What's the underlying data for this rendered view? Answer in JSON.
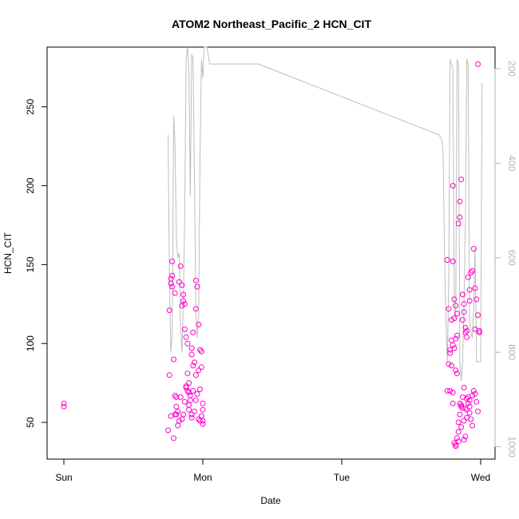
{
  "chart_data": {
    "type": "scatter",
    "title": "ATOM2 Northeast_Pacific_2 HCN_CIT",
    "xlabel": "Date",
    "ylabel": "HCN_CIT",
    "x_tick_labels": [
      "Sun",
      "Mon",
      "Tue",
      "Wed"
    ],
    "y_ticks": [
      50,
      100,
      150,
      200,
      250
    ],
    "y_tick_labels": [
      "50",
      "100",
      "150",
      "200",
      "250"
    ],
    "ylim": [
      26,
      289
    ],
    "y2_ticks": [
      200,
      400,
      600,
      800,
      1000
    ],
    "y2_tick_labels": [
      "200",
      "400",
      "600",
      "800",
      "1000"
    ],
    "y2_reversed": true,
    "xlim_days": [
      -0.07,
      3.12
    ],
    "grid": false,
    "colors": {
      "points": "#ff00cc",
      "line": "#bdbdbd",
      "right_axis": "#b3b3b3"
    },
    "series": [
      {
        "x": [
          0.0,
          0.0,
          0.75,
          0.76,
          0.77,
          0.77,
          0.78,
          0.78,
          0.79,
          0.8,
          0.81,
          0.81,
          0.82,
          0.83,
          0.84,
          0.85,
          0.86,
          0.86,
          0.87,
          0.88,
          0.89,
          0.89,
          0.9,
          0.9,
          0.91,
          0.92,
          0.92,
          0.93,
          0.94,
          0.95,
          0.95,
          0.96,
          0.97,
          0.98,
          0.99,
          0.99,
          1.0,
          1.0,
          0.76,
          0.77,
          0.79,
          0.8,
          0.81,
          0.82,
          0.84,
          0.85,
          0.86,
          0.87,
          0.88,
          0.89,
          0.9,
          0.91,
          0.92,
          0.93,
          0.94,
          0.95,
          0.96,
          0.97,
          0.98,
          0.99,
          1.0,
          0.78,
          0.8,
          0.83,
          0.85,
          0.87,
          0.88,
          0.9,
          0.92,
          0.93,
          0.95,
          0.97,
          0.98,
          1.0,
          2.76,
          2.77,
          2.78,
          2.79,
          2.8,
          2.8,
          2.81,
          2.81,
          2.82,
          2.82,
          2.83,
          2.83,
          2.84,
          2.85,
          2.85,
          2.86,
          2.87,
          2.87,
          2.88,
          2.88,
          2.89,
          2.89,
          2.9,
          2.9,
          2.91,
          2.92,
          2.92,
          2.93,
          2.94,
          2.95,
          2.96,
          2.97,
          2.98,
          2.99,
          2.76,
          2.77,
          2.78,
          2.79,
          2.8,
          2.81,
          2.82,
          2.83,
          2.84,
          2.85,
          2.86,
          2.87,
          2.88,
          2.89,
          2.9,
          2.91,
          2.92,
          2.93,
          2.94,
          2.95,
          2.96,
          2.97,
          2.98,
          2.99,
          2.79,
          2.8,
          2.81,
          2.82,
          2.83,
          2.84,
          2.85,
          2.86,
          2.87,
          2.88,
          2.89,
          2.9,
          2.91,
          2.92,
          2.78,
          2.8,
          2.82,
          2.84,
          2.86,
          2.88,
          2.9,
          2.92,
          2.94,
          2.96,
          2.98
        ],
        "y": [
          62,
          60,
          45,
          121,
          141,
          138,
          143,
          136,
          90,
          67,
          66,
          55,
          48,
          51,
          149,
          137,
          131,
          127,
          125,
          104,
          100,
          81,
          69,
          75,
          64,
          97,
          93,
          107,
          88,
          122,
          140,
          136,
          112,
          96,
          85,
          95,
          62,
          58,
          80,
          54,
          40,
          55,
          60,
          57,
          66,
          52,
          55,
          63,
          72,
          70,
          58,
          67,
          53,
          70,
          57,
          64,
          68,
          52,
          51,
          54,
          49,
          152,
          132,
          139,
          124,
          109,
          73,
          61,
          55,
          86,
          80,
          83,
          71,
          51,
          153,
          122,
          94,
          115,
          200,
          152,
          128,
          116,
          124,
          103,
          105,
          119,
          176,
          190,
          180,
          204,
          131,
          115,
          125,
          120,
          107,
          110,
          104,
          108,
          142,
          127,
          134,
          145,
          146,
          160,
          135,
          128,
          118,
          107,
          70,
          87,
          96,
          86,
          62,
          37,
          35,
          40,
          50,
          55,
          60,
          66,
          72,
          59,
          65,
          62,
          56,
          52,
          48,
          70,
          68,
          63,
          57,
          108,
          102,
          99,
          97,
          83,
          81,
          44,
          62,
          47,
          59,
          39,
          41,
          53,
          66,
          64,
          70,
          69,
          36,
          38,
          61,
          51,
          58,
          60,
          67,
          109,
          277
        ]
      }
    ],
    "line_series": {
      "x": [
        0.75,
        0.76,
        0.77,
        0.78,
        0.79,
        0.8,
        0.81,
        0.82,
        0.83,
        0.84,
        0.85,
        0.86,
        0.87,
        0.88,
        0.89,
        0.9,
        0.91,
        0.92,
        0.93,
        0.94,
        0.95,
        0.96,
        0.97,
        0.98,
        0.99,
        1.0,
        1.01,
        1.02,
        1.03,
        1.05,
        1.07,
        1.1,
        1.2,
        1.4,
        2.7,
        2.72,
        2.73,
        2.74,
        2.75,
        2.76,
        2.77,
        2.78,
        2.79,
        2.8,
        2.81,
        2.82,
        2.83,
        2.84,
        2.85,
        2.86,
        2.87,
        2.88,
        2.89,
        2.9,
        2.91,
        2.92,
        2.93,
        2.94,
        2.95,
        2.96,
        2.97,
        2.98,
        2.99,
        3.0,
        3.01
      ],
      "y2": [
        340,
        640,
        800,
        760,
        300,
        360,
        560,
        600,
        590,
        750,
        800,
        700,
        500,
        180,
        120,
        200,
        470,
        170,
        180,
        440,
        720,
        770,
        720,
        390,
        180,
        220,
        150,
        100,
        120,
        190,
        190,
        190,
        190,
        190,
        340,
        350,
        380,
        600,
        730,
        820,
        650,
        180,
        190,
        200,
        700,
        730,
        180,
        190,
        820,
        860,
        820,
        700,
        520,
        180,
        190,
        730,
        760,
        770,
        700,
        580,
        820,
        820,
        820,
        820,
        230
      ]
    }
  }
}
